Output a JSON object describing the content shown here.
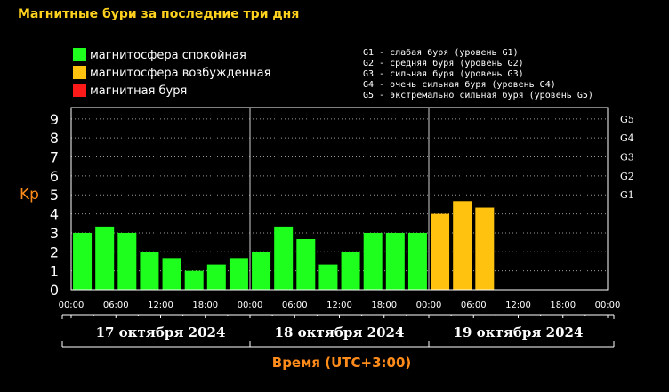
{
  "chart_data": {
    "type": "bar",
    "title": "Магнитные бури за последние три дня",
    "ylabel": "Kp",
    "xlabel": "Время (UTC+3:00)",
    "ylim": [
      0,
      9.6
    ],
    "y_ticks": [
      "0",
      "1",
      "2",
      "3",
      "4",
      "5",
      "6",
      "7",
      "8",
      "9"
    ],
    "g_ticks": [
      {
        "label": "G1",
        "value": 5
      },
      {
        "label": "G2",
        "value": 6
      },
      {
        "label": "G3",
        "value": 7
      },
      {
        "label": "G4",
        "value": 8
      },
      {
        "label": "G5",
        "value": 9
      }
    ],
    "x_ticks": [
      "00:00",
      "06:00",
      "12:00",
      "18:00",
      "00:00",
      "06:00",
      "12:00",
      "18:00",
      "00:00",
      "06:00",
      "12:00",
      "18:00",
      "00:00"
    ],
    "days": [
      "17 октября 2024",
      "18 октября 2024",
      "19 октября 2024"
    ],
    "grid": true,
    "legend_position": "top-left",
    "legend": [
      {
        "label": "магнитосфера спокойная",
        "color": "#1eff1e"
      },
      {
        "label": "магнитосфера возбужденная",
        "color": "#ffc20e"
      },
      {
        "label": "магнитная буря",
        "color": "#ff1a1a"
      }
    ],
    "storm_levels": [
      "G1 - слабая буря (уровень G1)",
      "G2 - средняя буря (уровень G2)",
      "G3 - сильная буря (уровень G3)",
      "G4 - очень сильная буря (уровень G4)",
      "G5 - экстремально сильная буря (уровень G5)"
    ],
    "values": [
      3,
      3.33,
      3,
      2,
      1.67,
      1,
      1.33,
      1.67,
      2,
      3.33,
      2.67,
      1.33,
      2,
      3,
      3,
      3,
      4,
      4.67,
      4.33
    ],
    "bar_states": [
      "calm",
      "calm",
      "calm",
      "calm",
      "calm",
      "calm",
      "calm",
      "calm",
      "calm",
      "calm",
      "calm",
      "calm",
      "calm",
      "calm",
      "calm",
      "calm",
      "excited",
      "excited",
      "excited"
    ],
    "colors": {
      "title": "#ffd21e",
      "accent": "#ff8c1a",
      "axis": "#ffffff",
      "grid": "#9a9a9a"
    }
  }
}
